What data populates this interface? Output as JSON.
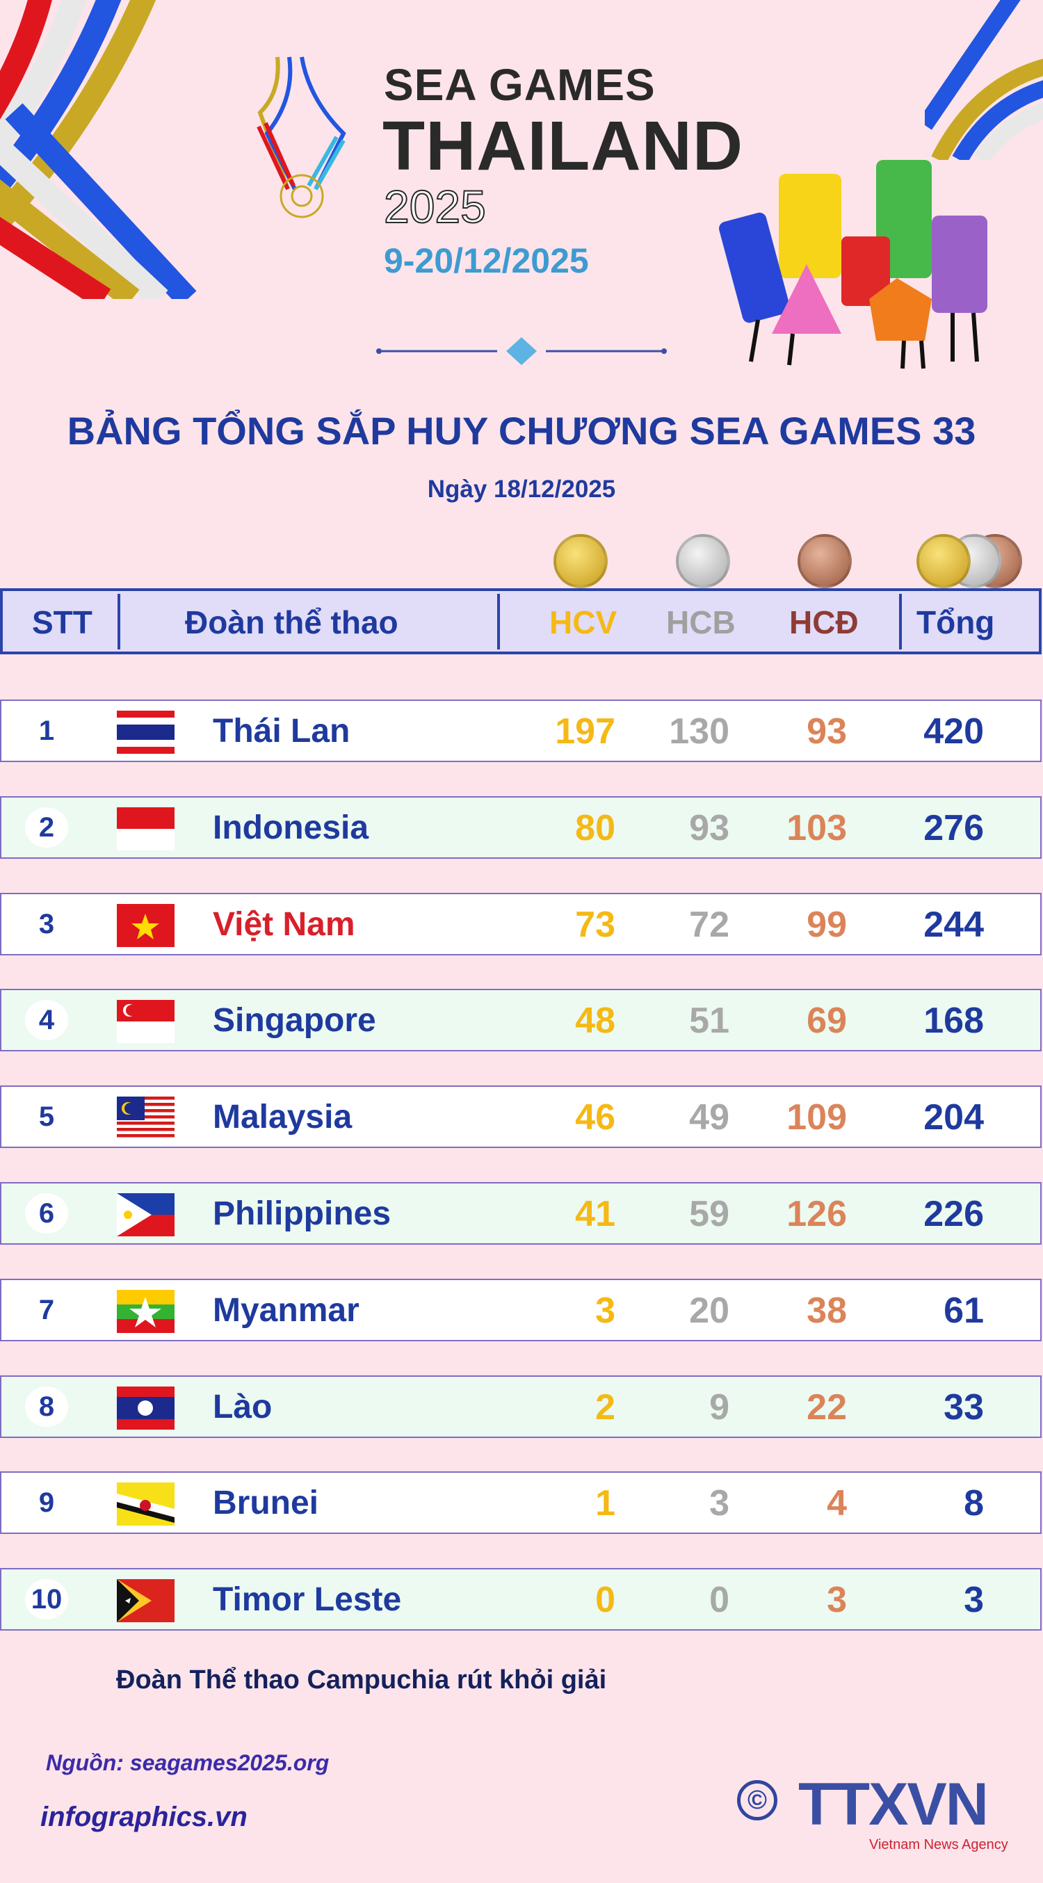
{
  "brand": {
    "line1": "SEA GAMES",
    "line2": "THAILAND",
    "line3": "2025",
    "dates": "9-20/12/2025"
  },
  "title": "BẢNG TỔNG SẮP HUY CHƯƠNG SEA GAMES 33",
  "subtitle": "Ngày 18/12/2025",
  "colors": {
    "gold": "#f5b915",
    "silver": "#a8a8a8",
    "bronze": "#db8459",
    "blue": "#1f3a9e",
    "highlight": "#d8202a"
  },
  "table": {
    "headers": {
      "stt": "STT",
      "team": "Đoàn thể thao",
      "gold": "HCV",
      "silver": "HCB",
      "bronze": "HCĐ",
      "total": "Tổng"
    },
    "rows": [
      {
        "rank": "1",
        "team": "Thái Lan",
        "flag": "thailand",
        "gold": "197",
        "silver": "130",
        "bronze": "93",
        "total": "420"
      },
      {
        "rank": "2",
        "team": "Indonesia",
        "flag": "indonesia",
        "gold": "80",
        "silver": "93",
        "bronze": "103",
        "total": "276"
      },
      {
        "rank": "3",
        "team": "Việt Nam",
        "flag": "vietnam",
        "gold": "73",
        "silver": "72",
        "bronze": "99",
        "total": "244",
        "highlight": true
      },
      {
        "rank": "4",
        "team": "Singapore",
        "flag": "singapore",
        "gold": "48",
        "silver": "51",
        "bronze": "69",
        "total": "168"
      },
      {
        "rank": "5",
        "team": "Malaysia",
        "flag": "malaysia",
        "gold": "46",
        "silver": "49",
        "bronze": "109",
        "total": "204"
      },
      {
        "rank": "6",
        "team": "Philippines",
        "flag": "philippines",
        "gold": "41",
        "silver": "59",
        "bronze": "126",
        "total": "226"
      },
      {
        "rank": "7",
        "team": "Myanmar",
        "flag": "myanmar",
        "gold": "3",
        "silver": "20",
        "bronze": "38",
        "total": "61"
      },
      {
        "rank": "8",
        "team": "Lào",
        "flag": "laos",
        "gold": "2",
        "silver": "9",
        "bronze": "22",
        "total": "33"
      },
      {
        "rank": "9",
        "team": "Brunei",
        "flag": "brunei",
        "gold": "1",
        "silver": "3",
        "bronze": "4",
        "total": "8"
      },
      {
        "rank": "10",
        "team": "Timor Leste",
        "flag": "timor-leste",
        "gold": "0",
        "silver": "0",
        "bronze": "3",
        "total": "3"
      }
    ]
  },
  "note": "Đoàn Thể thao Campuchia rút khỏi giải",
  "source": "Nguồn: seagames2025.org",
  "website": "infographics.vn",
  "logo": {
    "copyright": "©",
    "name": "TTXVN",
    "tagline": "Vietnam News Agency"
  }
}
